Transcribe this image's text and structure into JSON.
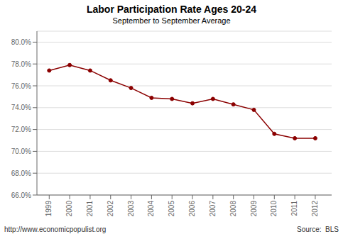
{
  "chart_data": {
    "type": "line",
    "title": "Labor Participation Rate Ages 20-24",
    "subtitle": "September to September Average",
    "x": [
      1999,
      2000,
      2001,
      2002,
      2003,
      2004,
      2005,
      2006,
      2007,
      2008,
      2009,
      2010,
      2011,
      2012
    ],
    "values": [
      77.4,
      77.9,
      77.4,
      76.5,
      75.8,
      74.9,
      74.8,
      74.4,
      74.8,
      74.3,
      73.8,
      71.6,
      71.2,
      71.2
    ],
    "color": "#8B0000",
    "marker": "circle",
    "xlim": [
      1998.4,
      2012.8
    ],
    "xticks": [
      1999,
      2000,
      2001,
      2002,
      2003,
      2004,
      2005,
      2006,
      2007,
      2008,
      2009,
      2010,
      2011,
      2012
    ],
    "ylim": [
      66.0,
      81.0
    ],
    "yticks": [
      {
        "value": 66.0,
        "label": "66.0%"
      },
      {
        "value": 68.0,
        "label": "68.0%"
      },
      {
        "value": 70.0,
        "label": "70.0%"
      },
      {
        "value": 72.0,
        "label": "72.0%"
      },
      {
        "value": 74.0,
        "label": "74.0%"
      },
      {
        "value": 76.0,
        "label": "76.0%"
      },
      {
        "value": 78.0,
        "label": "78.0%"
      },
      {
        "value": 80.0,
        "label": "80.0%"
      }
    ],
    "grid": "y",
    "annotations": [
      "http://www.economicpopulist.org",
      "Source:  BLS"
    ]
  }
}
